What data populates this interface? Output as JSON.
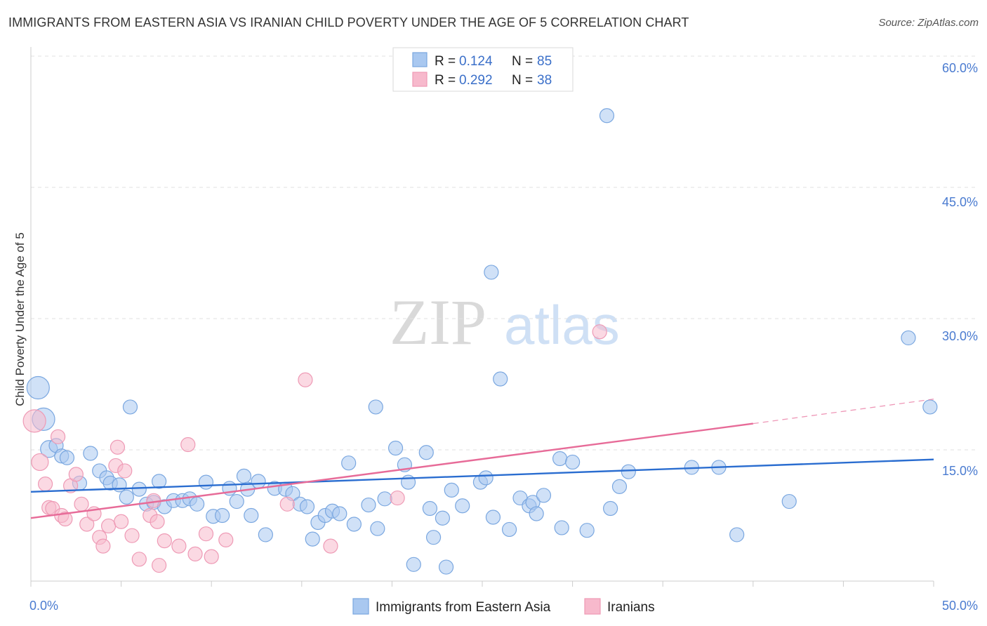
{
  "header": {
    "title": "IMMIGRANTS FROM EASTERN ASIA VS IRANIAN CHILD POVERTY UNDER THE AGE OF 5 CORRELATION CHART",
    "source": "Source: ZipAtlas.com"
  },
  "watermark": {
    "zip": "ZIP",
    "atlas": "atlas"
  },
  "legend": {
    "rows": [
      {
        "r_label": "R =",
        "r_value": "0.124",
        "n_label": "N =",
        "n_value": "85"
      },
      {
        "r_label": "R =",
        "r_value": "0.292",
        "n_label": "N =",
        "n_value": "38"
      }
    ]
  },
  "chart_data": {
    "type": "scatter",
    "ylabel": "Child Poverty Under the Age of 5",
    "x_tick_labels": [
      "0.0%",
      "50.0%"
    ],
    "y_tick_labels": [
      "15.0%",
      "30.0%",
      "45.0%",
      "60.0%"
    ],
    "xlim": [
      0,
      50
    ],
    "ylim": [
      0,
      60
    ],
    "grid": true,
    "legend_position": "top-center",
    "colors": {
      "blue_fill": "#a9c8f0",
      "blue_stroke": "#7aa7e0",
      "blue_line": "#2a6dd0",
      "pink_fill": "#f7b9cc",
      "pink_stroke": "#ee9ab5",
      "pink_line": "#e76b98"
    },
    "series": [
      {
        "name": "Immigrants from Eastern Asia",
        "color": "#a9c8f0",
        "trend": {
          "x0": 0,
          "y0": 10.2,
          "x1": 50,
          "y1": 13.9
        },
        "points": [
          [
            0.4,
            22.1
          ],
          [
            0.7,
            18.5
          ],
          [
            1.0,
            15.1
          ],
          [
            1.4,
            15.5
          ],
          [
            1.7,
            14.3
          ],
          [
            2.0,
            14.1
          ],
          [
            2.7,
            11.2
          ],
          [
            3.3,
            14.6
          ],
          [
            3.8,
            12.6
          ],
          [
            4.2,
            11.8
          ],
          [
            4.4,
            11.2
          ],
          [
            4.9,
            11.0
          ],
          [
            5.3,
            9.6
          ],
          [
            5.5,
            19.9
          ],
          [
            6.0,
            10.5
          ],
          [
            6.4,
            8.8
          ],
          [
            6.8,
            9.0
          ],
          [
            7.1,
            11.4
          ],
          [
            7.4,
            8.5
          ],
          [
            7.9,
            9.2
          ],
          [
            8.4,
            9.2
          ],
          [
            8.8,
            9.4
          ],
          [
            9.2,
            8.8
          ],
          [
            9.7,
            11.3
          ],
          [
            10.1,
            7.4
          ],
          [
            10.6,
            7.5
          ],
          [
            11.0,
            10.6
          ],
          [
            11.4,
            9.1
          ],
          [
            11.8,
            12.0
          ],
          [
            12.2,
            7.5
          ],
          [
            12.6,
            11.4
          ],
          [
            13.0,
            5.3
          ],
          [
            13.5,
            10.6
          ],
          [
            14.1,
            10.5
          ],
          [
            14.5,
            10.0
          ],
          [
            14.9,
            8.8
          ],
          [
            15.3,
            8.5
          ],
          [
            15.6,
            4.8
          ],
          [
            15.9,
            6.7
          ],
          [
            16.3,
            7.5
          ],
          [
            16.7,
            8.0
          ],
          [
            17.1,
            7.7
          ],
          [
            17.6,
            13.5
          ],
          [
            17.9,
            6.5
          ],
          [
            18.7,
            8.7
          ],
          [
            19.2,
            6.0
          ],
          [
            19.1,
            19.9
          ],
          [
            19.6,
            9.4
          ],
          [
            20.2,
            15.2
          ],
          [
            20.7,
            13.3
          ],
          [
            20.9,
            11.3
          ],
          [
            21.2,
            1.9
          ],
          [
            21.9,
            14.7
          ],
          [
            22.1,
            8.3
          ],
          [
            22.3,
            5.0
          ],
          [
            22.8,
            7.2
          ],
          [
            23.0,
            1.6
          ],
          [
            23.3,
            10.4
          ],
          [
            23.9,
            8.6
          ],
          [
            24.9,
            11.3
          ],
          [
            25.2,
            11.8
          ],
          [
            25.5,
            35.3
          ],
          [
            25.6,
            7.3
          ],
          [
            26.0,
            23.1
          ],
          [
            26.5,
            5.9
          ],
          [
            27.1,
            9.5
          ],
          [
            27.6,
            8.6
          ],
          [
            27.8,
            9.0
          ],
          [
            28.0,
            7.7
          ],
          [
            28.4,
            9.8
          ],
          [
            29.4,
            6.1
          ],
          [
            29.3,
            14.0
          ],
          [
            30.0,
            13.6
          ],
          [
            30.8,
            5.8
          ],
          [
            31.9,
            53.2
          ],
          [
            32.1,
            8.3
          ],
          [
            32.6,
            10.8
          ],
          [
            33.1,
            12.5
          ],
          [
            36.6,
            13.0
          ],
          [
            38.1,
            13.0
          ],
          [
            39.1,
            5.3
          ],
          [
            42.0,
            9.1
          ],
          [
            48.6,
            27.8
          ],
          [
            49.8,
            19.9
          ],
          [
            12.0,
            10.5
          ]
        ]
      },
      {
        "name": "Iranians",
        "color": "#f7b9cc",
        "trend": {
          "x0": 0,
          "y0": 7.2,
          "x1": 40,
          "y1": 18.0
        },
        "trend_dashed": {
          "x0": 40,
          "y0": 18.0,
          "x1": 50,
          "y1": 20.8
        },
        "points": [
          [
            0.2,
            18.3
          ],
          [
            0.5,
            13.6
          ],
          [
            0.8,
            11.1
          ],
          [
            1.0,
            8.4
          ],
          [
            1.2,
            8.3
          ],
          [
            1.5,
            16.5
          ],
          [
            1.7,
            7.5
          ],
          [
            1.9,
            7.1
          ],
          [
            2.2,
            10.9
          ],
          [
            2.5,
            12.2
          ],
          [
            2.8,
            8.8
          ],
          [
            3.1,
            6.5
          ],
          [
            3.5,
            7.7
          ],
          [
            3.8,
            5.0
          ],
          [
            4.0,
            4.0
          ],
          [
            4.3,
            6.3
          ],
          [
            4.7,
            13.2
          ],
          [
            4.8,
            15.3
          ],
          [
            5.0,
            6.8
          ],
          [
            5.2,
            12.6
          ],
          [
            5.6,
            5.2
          ],
          [
            6.0,
            2.5
          ],
          [
            6.6,
            7.5
          ],
          [
            6.8,
            9.2
          ],
          [
            7.1,
            1.8
          ],
          [
            7.4,
            4.6
          ],
          [
            8.2,
            4.0
          ],
          [
            8.7,
            15.6
          ],
          [
            9.1,
            3.1
          ],
          [
            9.7,
            5.4
          ],
          [
            10.0,
            2.8
          ],
          [
            10.8,
            4.7
          ],
          [
            14.2,
            8.8
          ],
          [
            15.2,
            23.0
          ],
          [
            16.6,
            4.0
          ],
          [
            20.3,
            9.5
          ],
          [
            31.5,
            28.5
          ],
          [
            7.0,
            6.8
          ]
        ]
      }
    ]
  },
  "bottom_legend": {
    "items": [
      {
        "label": "Immigrants from Eastern Asia"
      },
      {
        "label": "Iranians"
      }
    ]
  }
}
